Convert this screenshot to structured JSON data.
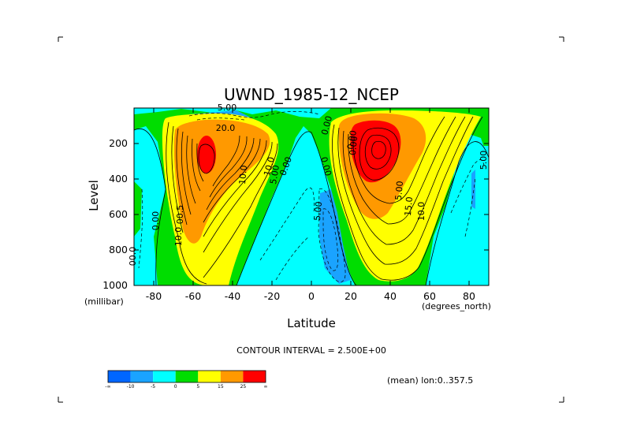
{
  "chart_data": {
    "type": "contour",
    "title": "UWND_1985-12_NCEP",
    "xlabel": "Latitude",
    "ylabel": "Level",
    "x_units": "(degrees_north)",
    "y_units": "(millibar)",
    "xlim": [
      -90,
      90
    ],
    "ylim": [
      1000,
      0
    ],
    "x_ticks": [
      "-80",
      "-60",
      "-40",
      "-20",
      "0",
      "20",
      "40",
      "60",
      "80"
    ],
    "y_ticks": [
      "200",
      "400",
      "600",
      "800",
      "1000"
    ],
    "contour_interval_text": "CONTOUR INTERVAL = 2.500E+00",
    "mean_text": "(mean) lon:0..357.5",
    "contour_labels": [
      "5.00",
      "20.0",
      "10.0",
      "5.00",
      "0.00",
      "0.00",
      "10.0",
      "0.00",
      "00.5",
      "00.0",
      "0.00",
      "5.00",
      "0.00",
      "5.00",
      "15.0",
      "10.0",
      "5.00",
      "0.00",
      "10.0"
    ],
    "colorbar": {
      "ticks": [
        "-∞",
        "-10",
        "-5",
        "0",
        "5",
        "15",
        "25",
        "∞"
      ],
      "colors": [
        "#0066ff",
        "#1aa3ff",
        "#00ffff",
        "#00dd00",
        "#ffff00",
        "#ff9900",
        "#ff0000"
      ]
    },
    "jets": [
      {
        "name": "southern-jet",
        "lat": -55,
        "level": 260,
        "approx_max": 30
      },
      {
        "name": "northern-jet",
        "lat": 32,
        "level": 200,
        "approx_max": 50
      }
    ]
  }
}
